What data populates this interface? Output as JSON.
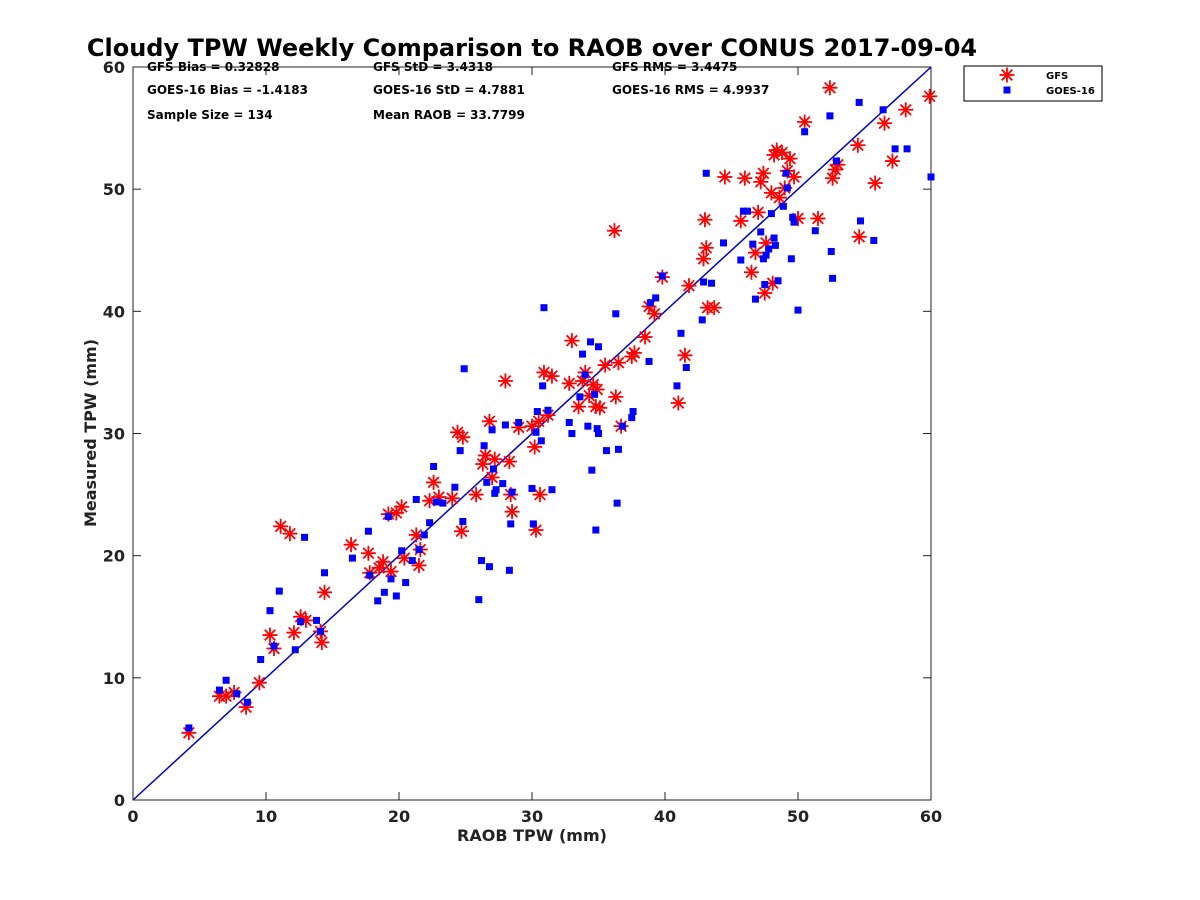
{
  "chart_data": {
    "type": "scatter",
    "title": "Cloudy TPW Weekly Comparison to RAOB over CONUS 2017-09-04",
    "xlabel": "RAOB TPW (mm)",
    "ylabel": "Measured TPW (mm)",
    "xlim": [
      0,
      60
    ],
    "ylim": [
      0,
      60
    ],
    "xticks": [
      "0",
      "10",
      "20",
      "30",
      "40",
      "50",
      "60"
    ],
    "yticks": [
      "0",
      "10",
      "20",
      "30",
      "40",
      "50",
      "60"
    ],
    "grid": false,
    "legend_position": "outside-top-right",
    "reference_line": {
      "x": [
        0,
        60
      ],
      "y": [
        0,
        60
      ],
      "color": "#0000cc"
    },
    "stats": [
      {
        "label": "GFS Bias",
        "value": "0.32828"
      },
      {
        "label": "GFS StD",
        "value": "3.4318"
      },
      {
        "label": "GFS RMS",
        "value": "3.4475"
      },
      {
        "label": "GOES-16 Bias",
        "value": "-1.4183"
      },
      {
        "label": "GOES-16 StD",
        "value": "4.7881"
      },
      {
        "label": "GOES-16 RMS",
        "value": "4.9937"
      },
      {
        "label": "Sample Size",
        "value": "134"
      },
      {
        "label": "Mean RAOB",
        "value": "33.7799"
      }
    ],
    "series": [
      {
        "name": "GFS",
        "marker": "asterisk",
        "color": "#ff0000",
        "points": [
          [
            4.2,
            5.5
          ],
          [
            6.5,
            8.5
          ],
          [
            7.0,
            8.5
          ],
          [
            7.6,
            8.8
          ],
          [
            8.5,
            7.6
          ],
          [
            9.5,
            9.6
          ],
          [
            10.3,
            13.5
          ],
          [
            10.6,
            12.4
          ],
          [
            11.1,
            22.4
          ],
          [
            11.8,
            21.8
          ],
          [
            12.1,
            13.7
          ],
          [
            12.6,
            15.0
          ],
          [
            13.0,
            14.7
          ],
          [
            14.1,
            13.8
          ],
          [
            14.2,
            12.9
          ],
          [
            14.4,
            17.0
          ],
          [
            16.4,
            20.9
          ],
          [
            17.7,
            20.2
          ],
          [
            17.8,
            18.6
          ],
          [
            18.5,
            19.0
          ],
          [
            18.8,
            19.5
          ],
          [
            19.2,
            23.4
          ],
          [
            19.4,
            18.7
          ],
          [
            19.8,
            23.5
          ],
          [
            20.2,
            24.0
          ],
          [
            20.4,
            19.8
          ],
          [
            21.3,
            21.7
          ],
          [
            21.5,
            19.2
          ],
          [
            21.6,
            20.5
          ],
          [
            22.3,
            24.5
          ],
          [
            22.6,
            26.0
          ],
          [
            23.0,
            24.8
          ],
          [
            24.0,
            24.7
          ],
          [
            24.4,
            30.1
          ],
          [
            24.7,
            22.0
          ],
          [
            24.8,
            29.7
          ],
          [
            25.8,
            25.0
          ],
          [
            26.3,
            27.5
          ],
          [
            26.5,
            28.2
          ],
          [
            26.8,
            31.0
          ],
          [
            27.0,
            26.4
          ],
          [
            27.2,
            27.9
          ],
          [
            28.0,
            34.3
          ],
          [
            28.3,
            27.7
          ],
          [
            28.4,
            25.0
          ],
          [
            28.5,
            23.6
          ],
          [
            29.0,
            30.5
          ],
          [
            30.0,
            30.6
          ],
          [
            30.2,
            28.9
          ],
          [
            30.3,
            22.1
          ],
          [
            30.5,
            31.0
          ],
          [
            30.6,
            25.0
          ],
          [
            30.9,
            35.0
          ],
          [
            31.2,
            31.5
          ],
          [
            31.5,
            34.7
          ],
          [
            32.8,
            34.1
          ],
          [
            33.0,
            37.6
          ],
          [
            33.5,
            32.2
          ],
          [
            33.8,
            34.3
          ],
          [
            34.0,
            35.0
          ],
          [
            34.3,
            33.1
          ],
          [
            34.6,
            34.0
          ],
          [
            34.8,
            32.2
          ],
          [
            34.9,
            33.6
          ],
          [
            35.1,
            32.1
          ],
          [
            35.5,
            35.6
          ],
          [
            36.2,
            46.6
          ],
          [
            36.3,
            33.0
          ],
          [
            36.5,
            35.8
          ],
          [
            36.7,
            30.6
          ],
          [
            37.5,
            36.3
          ],
          [
            37.7,
            36.6
          ],
          [
            38.5,
            37.9
          ],
          [
            38.8,
            40.4
          ],
          [
            39.2,
            39.8
          ],
          [
            39.8,
            42.8
          ],
          [
            41.0,
            32.5
          ],
          [
            41.5,
            36.4
          ],
          [
            41.8,
            42.1
          ],
          [
            42.9,
            44.3
          ],
          [
            43.0,
            47.5
          ],
          [
            43.1,
            45.2
          ],
          [
            43.2,
            40.3
          ],
          [
            43.7,
            40.3
          ],
          [
            44.5,
            51.0
          ],
          [
            45.7,
            47.4
          ],
          [
            46.0,
            50.9
          ],
          [
            46.5,
            43.2
          ],
          [
            46.8,
            44.8
          ],
          [
            47.0,
            48.1
          ],
          [
            47.2,
            50.6
          ],
          [
            47.4,
            51.3
          ],
          [
            47.5,
            41.5
          ],
          [
            47.6,
            45.6
          ],
          [
            48.0,
            49.7
          ],
          [
            48.1,
            42.3
          ],
          [
            48.2,
            52.8
          ],
          [
            48.4,
            53.2
          ],
          [
            48.6,
            49.3
          ],
          [
            48.8,
            53.0
          ],
          [
            49.0,
            50.1
          ],
          [
            49.2,
            51.5
          ],
          [
            49.4,
            52.5
          ],
          [
            49.7,
            51.0
          ],
          [
            50.0,
            47.6
          ],
          [
            50.5,
            55.5
          ],
          [
            51.5,
            47.6
          ],
          [
            52.4,
            58.3
          ],
          [
            52.6,
            50.9
          ],
          [
            52.8,
            51.6
          ],
          [
            53.0,
            52.0
          ],
          [
            54.5,
            53.6
          ],
          [
            54.6,
            46.1
          ],
          [
            55.8,
            50.5
          ],
          [
            56.5,
            55.4
          ],
          [
            57.1,
            52.3
          ],
          [
            58.1,
            56.5
          ],
          [
            59.9,
            57.6
          ]
        ]
      },
      {
        "name": "GOES-16",
        "marker": "square",
        "color": "#0000ff",
        "points": [
          [
            4.2,
            5.9
          ],
          [
            6.5,
            9.0
          ],
          [
            7.0,
            9.8
          ],
          [
            7.8,
            8.7
          ],
          [
            8.6,
            8.0
          ],
          [
            9.6,
            11.5
          ],
          [
            10.3,
            15.5
          ],
          [
            10.6,
            12.6
          ],
          [
            11.0,
            17.1
          ],
          [
            12.2,
            12.3
          ],
          [
            12.6,
            14.6
          ],
          [
            12.9,
            21.5
          ],
          [
            13.8,
            14.7
          ],
          [
            14.1,
            13.8
          ],
          [
            14.4,
            18.6
          ],
          [
            16.5,
            19.8
          ],
          [
            17.7,
            22.0
          ],
          [
            17.8,
            18.4
          ],
          [
            18.4,
            16.3
          ],
          [
            18.9,
            17.0
          ],
          [
            19.2,
            23.2
          ],
          [
            19.4,
            18.1
          ],
          [
            19.8,
            16.7
          ],
          [
            20.2,
            20.4
          ],
          [
            20.5,
            17.8
          ],
          [
            21.0,
            19.6
          ],
          [
            21.3,
            24.6
          ],
          [
            21.5,
            20.5
          ],
          [
            21.9,
            21.7
          ],
          [
            22.3,
            22.7
          ],
          [
            22.6,
            27.3
          ],
          [
            22.8,
            24.4
          ],
          [
            23.3,
            24.3
          ],
          [
            24.2,
            25.6
          ],
          [
            24.6,
            28.6
          ],
          [
            24.8,
            22.8
          ],
          [
            24.9,
            35.3
          ],
          [
            26.0,
            16.4
          ],
          [
            26.2,
            19.6
          ],
          [
            26.4,
            29.0
          ],
          [
            26.6,
            26.0
          ],
          [
            26.8,
            19.1
          ],
          [
            27.0,
            30.3
          ],
          [
            27.1,
            27.1
          ],
          [
            27.2,
            25.1
          ],
          [
            27.3,
            25.4
          ],
          [
            27.8,
            25.9
          ],
          [
            28.0,
            30.7
          ],
          [
            28.3,
            18.8
          ],
          [
            28.4,
            22.6
          ],
          [
            28.5,
            25.2
          ],
          [
            29.0,
            30.9
          ],
          [
            30.0,
            25.5
          ],
          [
            30.1,
            22.6
          ],
          [
            30.3,
            30.1
          ],
          [
            30.4,
            31.8
          ],
          [
            30.7,
            29.4
          ],
          [
            30.8,
            33.9
          ],
          [
            30.9,
            40.3
          ],
          [
            31.2,
            31.9
          ],
          [
            31.5,
            25.4
          ],
          [
            32.8,
            30.9
          ],
          [
            33.0,
            30.0
          ],
          [
            33.6,
            33.0
          ],
          [
            33.8,
            36.5
          ],
          [
            34.0,
            34.8
          ],
          [
            34.2,
            30.6
          ],
          [
            34.4,
            37.5
          ],
          [
            34.5,
            27.0
          ],
          [
            34.7,
            33.2
          ],
          [
            34.8,
            22.1
          ],
          [
            34.9,
            30.4
          ],
          [
            35.0,
            37.1
          ],
          [
            35.0,
            30.0
          ],
          [
            35.6,
            28.6
          ],
          [
            36.3,
            39.8
          ],
          [
            36.4,
            24.3
          ],
          [
            36.5,
            28.7
          ],
          [
            36.8,
            30.6
          ],
          [
            37.5,
            31.3
          ],
          [
            37.6,
            31.8
          ],
          [
            38.8,
            35.9
          ],
          [
            38.9,
            40.7
          ],
          [
            39.3,
            41.1
          ],
          [
            39.8,
            42.9
          ],
          [
            40.9,
            33.9
          ],
          [
            41.2,
            38.2
          ],
          [
            41.6,
            35.4
          ],
          [
            42.8,
            39.3
          ],
          [
            42.9,
            42.4
          ],
          [
            43.1,
            51.3
          ],
          [
            43.5,
            42.3
          ],
          [
            44.4,
            45.6
          ],
          [
            45.7,
            44.2
          ],
          [
            45.9,
            48.2
          ],
          [
            46.2,
            48.2
          ],
          [
            46.6,
            45.5
          ],
          [
            46.8,
            41.0
          ],
          [
            47.2,
            46.5
          ],
          [
            47.4,
            44.3
          ],
          [
            47.5,
            42.2
          ],
          [
            47.6,
            44.6
          ],
          [
            47.8,
            45.1
          ],
          [
            48.0,
            48.0
          ],
          [
            48.2,
            46.0
          ],
          [
            48.3,
            45.4
          ],
          [
            48.5,
            42.5
          ],
          [
            48.9,
            48.6
          ],
          [
            49.1,
            51.3
          ],
          [
            49.2,
            50.1
          ],
          [
            49.5,
            44.3
          ],
          [
            49.6,
            47.7
          ],
          [
            49.7,
            47.3
          ],
          [
            50.0,
            40.1
          ],
          [
            50.5,
            54.7
          ],
          [
            51.3,
            46.6
          ],
          [
            52.4,
            56.0
          ],
          [
            52.5,
            44.9
          ],
          [
            52.6,
            42.7
          ],
          [
            52.9,
            52.3
          ],
          [
            54.6,
            57.1
          ],
          [
            54.7,
            47.4
          ],
          [
            55.7,
            45.8
          ],
          [
            56.4,
            56.5
          ],
          [
            57.3,
            53.3
          ],
          [
            58.2,
            53.3
          ],
          [
            60.0,
            51.0
          ]
        ]
      }
    ]
  }
}
